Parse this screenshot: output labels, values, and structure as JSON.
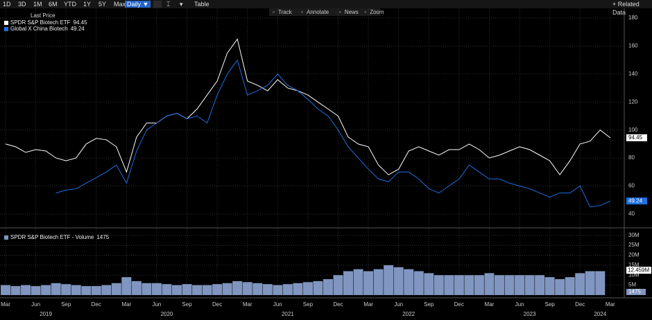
{
  "toolbar": {
    "ranges": [
      "1D",
      "3D",
      "1M",
      "6M",
      "YTD",
      "1Y",
      "5Y",
      "Max"
    ],
    "frequency": "Daily ▼",
    "table": "Table",
    "related": "+ Related Data"
  },
  "tools": [
    "Track",
    "Annotate",
    "News",
    "Zoom"
  ],
  "chart_data": [
    {
      "type": "line",
      "legend_title": "Last Price",
      "ylim": [
        32,
        187
      ],
      "yticks": [
        40,
        60,
        80,
        100,
        120,
        140,
        160,
        180
      ],
      "grid": true,
      "x": [
        "2019-03",
        "2019-04",
        "2019-05",
        "2019-06",
        "2019-07",
        "2019-08",
        "2019-09",
        "2019-10",
        "2019-11",
        "2019-12",
        "2020-01",
        "2020-02",
        "2020-03",
        "2020-04",
        "2020-05",
        "2020-06",
        "2020-07",
        "2020-08",
        "2020-09",
        "2020-10",
        "2020-11",
        "2020-12",
        "2021-01",
        "2021-02",
        "2021-03",
        "2021-04",
        "2021-05",
        "2021-06",
        "2021-07",
        "2021-08",
        "2021-09",
        "2021-10",
        "2021-11",
        "2021-12",
        "2022-01",
        "2022-02",
        "2022-03",
        "2022-04",
        "2022-05",
        "2022-06",
        "2022-07",
        "2022-08",
        "2022-09",
        "2022-10",
        "2022-11",
        "2022-12",
        "2023-01",
        "2023-02",
        "2023-03",
        "2023-04",
        "2023-05",
        "2023-06",
        "2023-07",
        "2023-08",
        "2023-09",
        "2023-10",
        "2023-11",
        "2023-12",
        "2024-01",
        "2024-02",
        "2024-03"
      ],
      "xticks": [
        {
          "value": "2019-03",
          "label": "Mar"
        },
        {
          "value": "2019-06",
          "label": "Jun"
        },
        {
          "value": "2019-09",
          "label": "Sep"
        },
        {
          "value": "2019-12",
          "label": "Dec"
        },
        {
          "value": "2020-03",
          "label": "Mar"
        },
        {
          "value": "2020-06",
          "label": "Jun"
        },
        {
          "value": "2020-09",
          "label": "Sep"
        },
        {
          "value": "2020-12",
          "label": "Dec"
        },
        {
          "value": "2021-03",
          "label": "Mar"
        },
        {
          "value": "2021-06",
          "label": "Jun"
        },
        {
          "value": "2021-09",
          "label": "Sep"
        },
        {
          "value": "2021-12",
          "label": "Dec"
        },
        {
          "value": "2022-03",
          "label": "Mar"
        },
        {
          "value": "2022-06",
          "label": "Jun"
        },
        {
          "value": "2022-09",
          "label": "Sep"
        },
        {
          "value": "2022-12",
          "label": "Dec"
        },
        {
          "value": "2023-03",
          "label": "Mar"
        },
        {
          "value": "2023-06",
          "label": "Jun"
        },
        {
          "value": "2023-09",
          "label": "Sep"
        },
        {
          "value": "2023-12",
          "label": "Dec"
        },
        {
          "value": "2024-03",
          "label": "Mar"
        }
      ],
      "years": [
        {
          "value": "2019-07",
          "label": "2019"
        },
        {
          "value": "2020-07",
          "label": "2020"
        },
        {
          "value": "2021-07",
          "label": "2021"
        },
        {
          "value": "2022-07",
          "label": "2022"
        },
        {
          "value": "2023-07",
          "label": "2023"
        },
        {
          "value": "2024-02",
          "label": "2024"
        }
      ],
      "series": [
        {
          "name": "SPDR S&P Biotech ETF",
          "color": "#ffffff",
          "values": [
            90,
            88,
            84,
            86,
            85,
            80,
            78,
            80,
            90,
            94,
            93,
            88,
            70,
            95,
            105,
            105,
            110,
            112,
            108,
            115,
            125,
            135,
            155,
            165,
            135,
            132,
            128,
            136,
            130,
            128,
            125,
            120,
            115,
            110,
            95,
            90,
            88,
            75,
            68,
            72,
            85,
            88,
            85,
            82,
            86,
            86,
            90,
            86,
            80,
            82,
            85,
            88,
            86,
            82,
            78,
            68,
            78,
            90,
            92,
            100,
            94.45
          ]
        },
        {
          "name": "Global X China Biotech",
          "color": "#1f6fe0",
          "values": [
            null,
            null,
            null,
            null,
            null,
            55,
            57,
            58,
            62,
            66,
            70,
            75,
            62,
            85,
            100,
            105,
            110,
            112,
            108,
            110,
            105,
            125,
            140,
            150,
            125,
            128,
            132,
            140,
            132,
            128,
            122,
            115,
            110,
            100,
            88,
            80,
            72,
            65,
            63,
            70,
            70,
            65,
            58,
            55,
            60,
            65,
            75,
            70,
            65,
            65,
            62,
            60,
            58,
            55,
            52,
            55,
            55,
            60,
            45,
            46,
            49.24
          ]
        }
      ]
    },
    {
      "type": "bar",
      "ylim": [
        0,
        32000000
      ],
      "yticks": [
        {
          "value": 5000000,
          "label": "5M"
        },
        {
          "value": 10000000,
          "label": "10M"
        },
        {
          "value": 15000000,
          "label": "15M"
        },
        {
          "value": 20000000,
          "label": "20M"
        },
        {
          "value": 25000000,
          "label": "25M"
        },
        {
          "value": 30000000,
          "label": "30M"
        }
      ],
      "average_last": {
        "value": 12459000,
        "label": "12.459M"
      },
      "series": [
        {
          "name": "SPDR S&P Biotech ETF - Volume",
          "color": "#8096c0",
          "values": [
            5000000,
            4500000,
            5000000,
            4500000,
            5000000,
            6000000,
            5500000,
            5000000,
            4500000,
            4500000,
            5000000,
            6000000,
            9000000,
            7000000,
            6000000,
            6000000,
            5500000,
            5000000,
            5500000,
            5000000,
            5000000,
            5500000,
            6000000,
            7000000,
            6500000,
            6000000,
            5500000,
            5000000,
            5500000,
            6000000,
            6500000,
            7000000,
            8000000,
            10000000,
            12000000,
            13000000,
            12000000,
            13000000,
            15000000,
            14000000,
            13000000,
            12000000,
            11000000,
            10000000,
            10000000,
            10000000,
            10000000,
            10000000,
            11000000,
            10000000,
            10000000,
            10000000,
            10000000,
            10000000,
            9000000,
            8000000,
            9000000,
            11000000,
            12000000,
            12000000,
            1475
          ]
        }
      ]
    }
  ]
}
